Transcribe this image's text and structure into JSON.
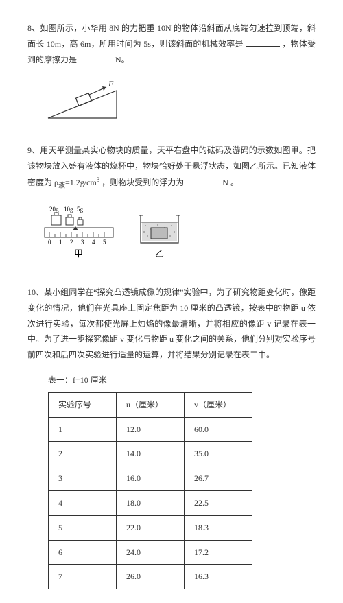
{
  "q8": {
    "text_a": "8、如图所示，小华用 8N 的力把重 10N 的物体沿斜面从底端匀速拉到顶端，斜面长 10m，高 6m，所用时间为 5s，则该斜面的机械效率是",
    "text_b": "，物体受到的摩擦力是",
    "text_c": "N。"
  },
  "q9": {
    "text_a": "9、用天平测量某实心物块的质量，天平右盘中的砝码及游码的示数如图甲。把该物块放入盛有液体的烧杯中，物块恰好处于悬浮状态，如图乙所示。已知液体密度为 ρ",
    "sub": "液",
    "eq": "=1.2g/cm",
    "sup": "3",
    "text_b": "，则物块受到的浮力为",
    "text_c": " N 。",
    "balance": {
      "w20": "20g",
      "w10": "10g",
      "w5": "5g",
      "ticks": [
        "0",
        "1",
        "2",
        "3",
        "4",
        "5"
      ],
      "label_jia": "甲",
      "label_yi": "乙"
    }
  },
  "q10": {
    "text": "10、某小组同学在“探究凸透镜成像的规律”实验中，为了研究物距变化时，像距变化的情况，他们在光具座上固定焦距为 10 厘米的凸透镜，按表中的物距 u 依次进行实验，每次都使光屏上烛焰的像最清晰，并将相应的像距 v 记录在表一中。为了进一步探究像距 v 变化与物距 u 变化之间的关系，他们分别对实验序号前四次和后四次实验进行适量的运算，并将结果分别记录在表二中。"
  },
  "table1": {
    "caption": "表一：f=10 厘米",
    "headers": [
      "实验序号",
      "u（厘米）",
      "v（厘米）"
    ],
    "rows": [
      [
        "1",
        "12.0",
        "60.0"
      ],
      [
        "2",
        "14.0",
        "35.0"
      ],
      [
        "3",
        "16.0",
        "26.7"
      ],
      [
        "4",
        "18.0",
        "22.5"
      ],
      [
        "5",
        "22.0",
        "18.3"
      ],
      [
        "6",
        "24.0",
        "17.2"
      ],
      [
        "7",
        "26.0",
        "16.3"
      ]
    ]
  }
}
